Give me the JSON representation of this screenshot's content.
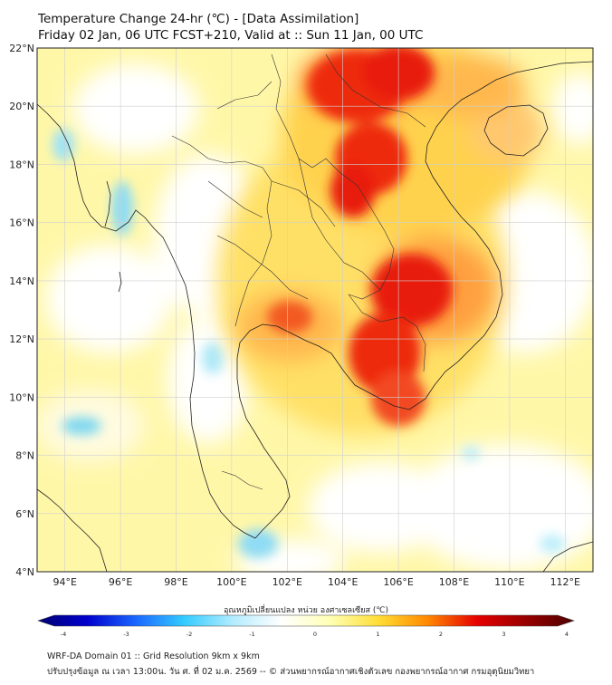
{
  "header": {
    "title_line1": "Temperature Change 24-hr (℃) - [Data Assimilation]",
    "title_line2": "Friday 02 Jan, 06 UTC FCST+210, Valid at :: Sun 11 Jan, 00 UTC"
  },
  "map": {
    "lon_range": [
      93,
      113
    ],
    "lat_range": [
      4,
      22
    ],
    "lon_ticks": [
      "94°E",
      "96°E",
      "98°E",
      "100°E",
      "102°E",
      "104°E",
      "106°E",
      "108°E",
      "110°E",
      "112°E"
    ],
    "lat_ticks": [
      "4°N",
      "6°N",
      "8°N",
      "10°N",
      "12°N",
      "14°N",
      "16°N",
      "18°N",
      "20°N",
      "22°N"
    ],
    "grid": true,
    "background_color": "#fff7a8",
    "warm_color": "#e60000",
    "cool_color": "#7fd8f0"
  },
  "colorbar": {
    "title": "อุณหภูมิเปลี่ยนแปลง หน่วย องศาเซลเซียส (℃)",
    "min": -4,
    "max": 4,
    "tick_labels": [
      "-4",
      "-3",
      "-2",
      "-1",
      "0",
      "1",
      "2",
      "3",
      "4"
    ],
    "stops": [
      "#000070",
      "#0000cd",
      "#1a66ff",
      "#33ccff",
      "#b3ecff",
      "#ffffff",
      "#ffffb3",
      "#ffdd33",
      "#ff8800",
      "#e60000",
      "#990000",
      "#4d0000"
    ]
  },
  "footer": {
    "line1": "WRF-DA Domain 01 :: Grid Resolution 9km x 9km",
    "line2": "ปรับปรุงข้อมูล ณ เวลา 13:00น. วัน ศ. ที่ 02 ม.ค. 2569 -- © ส่วนพยากรณ์อากาศเชิงตัวเลข กองพยากรณ์อากาศ กรมอุตุนิยมวิทยา"
  }
}
